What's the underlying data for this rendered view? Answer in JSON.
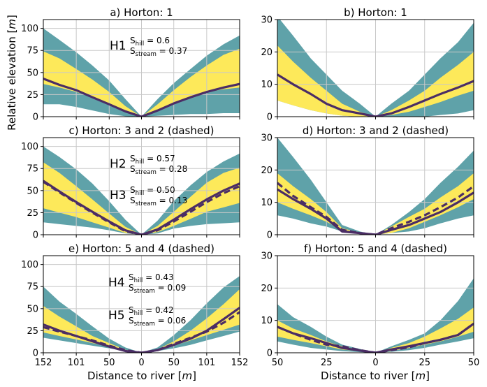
{
  "figure": {
    "ylabel": "Relative elevation [$m$]",
    "xlabel": "Distance to river [$m$]",
    "colors": {
      "outer_band": "#5fa2a9",
      "inner_band": "#fde95a",
      "line": "#4b2d65",
      "grid": "#c8c8c8"
    }
  },
  "chart_data": [
    {
      "id": "a",
      "type": "area",
      "title": "a) Horton: 1",
      "xlim": [
        -152,
        152
      ],
      "ylim": [
        0,
        110
      ],
      "xticks": [
        -152,
        -101,
        -50,
        0,
        50,
        101,
        152
      ],
      "xtick_labels": [
        "152",
        "101",
        "50",
        "0",
        "50",
        "101",
        "152"
      ],
      "yticks": [
        0,
        25,
        50,
        75,
        100
      ],
      "ytick_labels": [
        "0",
        "25",
        "50",
        "75",
        "100"
      ],
      "show_xtick_labels": false,
      "x": [
        -152,
        -127,
        -101,
        -76,
        -50,
        -25,
        0,
        25,
        50,
        76,
        101,
        127,
        152
      ],
      "outer_low": [
        14,
        14,
        11,
        7,
        3,
        0.5,
        0,
        1,
        2,
        3,
        3,
        4,
        4
      ],
      "inner_low": [
        37,
        33,
        28,
        22,
        14,
        6,
        0,
        7,
        15,
        22,
        28,
        31,
        33
      ],
      "median": [
        43,
        36,
        30,
        22,
        14,
        6,
        0,
        7,
        15,
        22,
        28,
        33,
        37
      ],
      "inner_high": [
        74,
        66,
        54,
        42,
        28,
        12,
        0,
        14,
        30,
        45,
        58,
        70,
        77
      ],
      "outer_high": [
        100,
        87,
        73,
        58,
        41,
        20,
        0,
        20,
        38,
        54,
        69,
        82,
        92
      ],
      "annotations": [
        {
          "label": "H1",
          "s_hill": "S$_{hill}$ = 0.6",
          "s_stream": "S$_{stream}$ = 0.37"
        }
      ]
    },
    {
      "id": "b",
      "type": "area",
      "title": "b)  Horton: 1",
      "xlim": [
        -50,
        50
      ],
      "ylim": [
        0,
        30
      ],
      "xticks": [
        -50,
        -25,
        0,
        25,
        50
      ],
      "xtick_labels": [
        "50",
        "25",
        "0",
        "25",
        "50"
      ],
      "yticks": [
        0,
        10,
        20,
        30
      ],
      "ytick_labels": [
        "0",
        "10",
        "20",
        "30"
      ],
      "show_xtick_labels": false,
      "x": [
        -50,
        -42,
        -33,
        -25,
        -17,
        -8,
        0,
        8,
        17,
        25,
        33,
        42,
        50
      ],
      "outer_low": [
        5,
        3.5,
        2,
        1,
        0.3,
        0,
        0,
        0,
        0,
        0,
        0.5,
        1,
        2
      ],
      "inner_low": [
        5,
        3.5,
        2,
        1,
        0.3,
        0,
        0,
        0.5,
        1.5,
        3,
        4.5,
        6.5,
        8
      ],
      "median": [
        13,
        10,
        7,
        4,
        2,
        1,
        0,
        1,
        3,
        5,
        7,
        9,
        11
      ],
      "inner_high": [
        22,
        17,
        12,
        8,
        4,
        1.5,
        0,
        2,
        5,
        8,
        12,
        16,
        20
      ],
      "outer_high": [
        31,
        25,
        18,
        13,
        8,
        4,
        0,
        4,
        8,
        13,
        18,
        23,
        29
      ],
      "annotations": []
    },
    {
      "id": "c",
      "type": "area",
      "title": "c) Horton: 3 and 2 (dashed)",
      "xlim": [
        -152,
        152
      ],
      "ylim": [
        0,
        110
      ],
      "xticks": [
        -152,
        -101,
        -50,
        0,
        50,
        101,
        152
      ],
      "xtick_labels": [
        "152",
        "101",
        "50",
        "0",
        "50",
        "101",
        "152"
      ],
      "yticks": [
        0,
        25,
        50,
        75,
        100
      ],
      "ytick_labels": [
        "0",
        "25",
        "50",
        "75",
        "100"
      ],
      "show_xtick_labels": false,
      "x": [
        -152,
        -127,
        -101,
        -76,
        -50,
        -25,
        0,
        25,
        50,
        76,
        101,
        127,
        152
      ],
      "outer_low": [
        14,
        12,
        10,
        8,
        5,
        1.5,
        0,
        1.5,
        7,
        10,
        12,
        13,
        14
      ],
      "inner_low": [
        30,
        25,
        20,
        14,
        8,
        2,
        0,
        3,
        10,
        18,
        26,
        31,
        36
      ],
      "median": [
        61,
        49,
        37,
        26,
        15,
        5,
        0,
        6,
        17,
        29,
        40,
        50,
        58
      ],
      "median_dashed": [
        60,
        48,
        36,
        25,
        14,
        4,
        0,
        5,
        15,
        26,
        37,
        47,
        55
      ],
      "inner_high": [
        82,
        70,
        55,
        40,
        24,
        9,
        0,
        10,
        26,
        43,
        59,
        70,
        76
      ],
      "outer_high": [
        100,
        88,
        74,
        58,
        38,
        17,
        0,
        16,
        38,
        56,
        71,
        83,
        92
      ],
      "annotations": [
        {
          "label": "H2",
          "s_hill": "S$_{hill}$ = 0.57",
          "s_stream": "S$_{stream}$ = 0.28"
        },
        {
          "label": "H3",
          "s_hill": "S$_{hill}$ = 0.50",
          "s_stream": "S$_{stream}$ = 0.13"
        }
      ]
    },
    {
      "id": "d",
      "type": "area",
      "title": "d) Horton: 3 and 2 (dashed)",
      "xlim": [
        -50,
        50
      ],
      "ylim": [
        0,
        30
      ],
      "xticks": [
        -50,
        -25,
        0,
        25,
        50
      ],
      "xtick_labels": [
        "50",
        "25",
        "0",
        "25",
        "50"
      ],
      "yticks": [
        0,
        10,
        20,
        30
      ],
      "ytick_labels": [
        "0",
        "10",
        "20",
        "30"
      ],
      "show_xtick_labels": false,
      "x": [
        -50,
        -42,
        -33,
        -25,
        -17,
        -8,
        0,
        8,
        17,
        25,
        33,
        42,
        50
      ],
      "outer_low": [
        6,
        5,
        3.5,
        2.5,
        1,
        0.3,
        0,
        0.5,
        1,
        2,
        3.5,
        5,
        6
      ],
      "inner_low": [
        10,
        8,
        6,
        4,
        1.5,
        0.5,
        0,
        0.5,
        2,
        4,
        6,
        8.5,
        11
      ],
      "median": [
        14,
        11,
        8,
        5,
        1,
        0.5,
        0,
        1.5,
        3,
        5,
        7,
        10,
        13
      ],
      "median_dashed": [
        16,
        12,
        8.5,
        5.5,
        1.5,
        0.5,
        0,
        2,
        4,
        6,
        8.5,
        11.5,
        15
      ],
      "inner_high": [
        19,
        15,
        11,
        7,
        2,
        0.7,
        0,
        2.5,
        5.5,
        8,
        11.5,
        15,
        19
      ],
      "outer_high": [
        30,
        24,
        17,
        10,
        3,
        1,
        0,
        3,
        7,
        11,
        16,
        21,
        26
      ],
      "annotations": []
    },
    {
      "id": "e",
      "type": "area",
      "title": "e) Horton: 5 and 4 (dashed)",
      "xlim": [
        -152,
        152
      ],
      "ylim": [
        0,
        110
      ],
      "xticks": [
        -152,
        -101,
        -50,
        0,
        50,
        101,
        152
      ],
      "xtick_labels": [
        "152",
        "101",
        "50",
        "0",
        "50",
        "101",
        "152"
      ],
      "yticks": [
        0,
        25,
        50,
        75,
        100
      ],
      "ytick_labels": [
        "0",
        "25",
        "50",
        "75",
        "100"
      ],
      "show_xtick_labels": true,
      "x": [
        -152,
        -127,
        -101,
        -76,
        -50,
        -25,
        0,
        25,
        50,
        76,
        101,
        127,
        152
      ],
      "outer_low": [
        17,
        14,
        11,
        8,
        5,
        2,
        0,
        2,
        5,
        9,
        14,
        19,
        24
      ],
      "inner_low": [
        23,
        19,
        15,
        11,
        7,
        2.5,
        0,
        3,
        8,
        14,
        20,
        26,
        32
      ],
      "median": [
        32,
        25,
        19,
        13,
        7,
        2,
        0,
        3,
        9,
        16,
        25,
        38,
        51
      ],
      "median_dashed": [
        29,
        24,
        19,
        14,
        8,
        3,
        0,
        3,
        10,
        17,
        24,
        34,
        46
      ],
      "inner_high": [
        53,
        41,
        30,
        19,
        11,
        3.5,
        0,
        4,
        13,
        25,
        39,
        55,
        72
      ],
      "outer_high": [
        75,
        58,
        44,
        30,
        16,
        6,
        0,
        6,
        20,
        37,
        56,
        74,
        87
      ],
      "annotations": [
        {
          "label": "H4",
          "s_hill": "S$_{hill}$ = 0.43",
          "s_stream": "S$_{stream}$ = 0.09"
        },
        {
          "label": "H5",
          "s_hill": "S$_{hill}$ = 0.42",
          "s_stream": "S$_{stream}$ = 0.06"
        }
      ]
    },
    {
      "id": "f",
      "type": "area",
      "title": "f)  Horton: 5 and 4 (dashed)",
      "xlim": [
        -50,
        50
      ],
      "ylim": [
        0,
        30
      ],
      "xticks": [
        -50,
        -25,
        0,
        25,
        50
      ],
      "xtick_labels": [
        "50",
        "25",
        "0",
        "25",
        "50"
      ],
      "yticks": [
        0,
        10,
        20,
        30
      ],
      "ytick_labels": [
        "0",
        "10",
        "20",
        "30"
      ],
      "show_xtick_labels": true,
      "x": [
        -50,
        -42,
        -33,
        -25,
        -17,
        -8,
        0,
        8,
        17,
        25,
        33,
        42,
        50
      ],
      "outer_low": [
        3.5,
        2.5,
        1.5,
        1,
        0.5,
        0.2,
        0,
        0.3,
        0.8,
        1.5,
        2.5,
        3.5,
        4.5
      ],
      "inner_low": [
        5,
        4,
        3,
        2,
        1,
        0.5,
        0,
        0.5,
        1.5,
        2.5,
        3.5,
        5,
        6.5
      ],
      "median": [
        8,
        6,
        4.5,
        3,
        1.5,
        0.7,
        0,
        1,
        2,
        3,
        4,
        5.5,
        9
      ],
      "median_dashed": [
        8,
        6,
        4,
        2.5,
        2,
        0.8,
        0,
        0.8,
        1.7,
        3,
        4,
        5.5,
        9
      ],
      "inner_high": [
        10,
        7.5,
        5.5,
        3.5,
        2,
        0.9,
        0,
        1.5,
        3,
        5,
        7.5,
        10.5,
        14
      ],
      "outer_high": [
        15,
        11,
        8,
        5,
        2.5,
        1.2,
        0,
        2,
        4,
        6,
        10,
        16,
        23
      ],
      "annotations": []
    }
  ]
}
